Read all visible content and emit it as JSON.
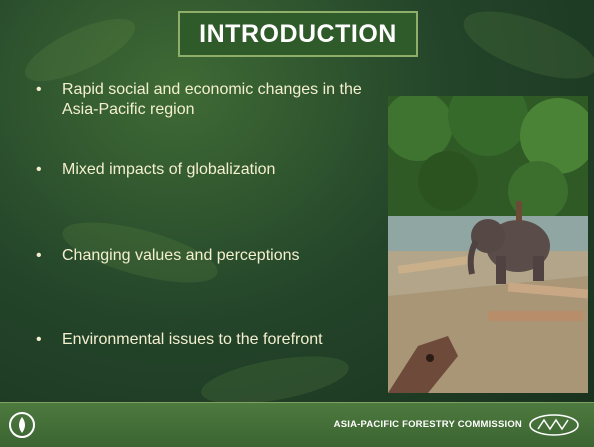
{
  "title": "INTRODUCTION",
  "bullets": [
    "Rapid social and economic changes in the Asia-Pacific region",
    "Mixed impacts of globalization",
    "Changing values and perceptions",
    "Environmental issues to the forefront"
  ],
  "footer": "ASIA-PACIFIC FORESTRY COMMISSION"
}
